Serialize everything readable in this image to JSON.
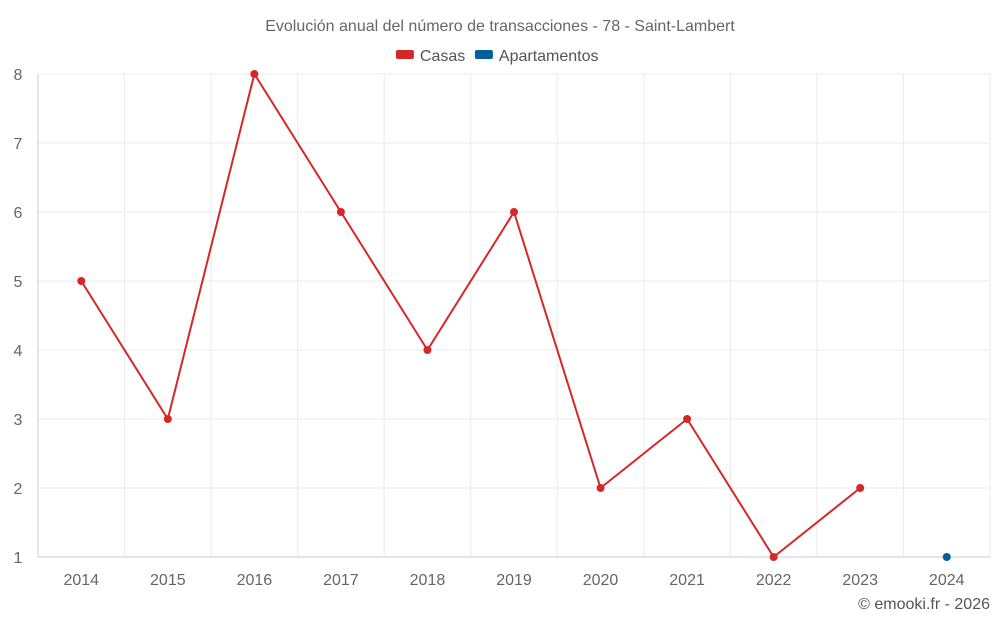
{
  "chart_data": {
    "type": "line",
    "title": "Evolución anual del número de transacciones - 78 - Saint-Lambert",
    "categories": [
      "2014",
      "2015",
      "2016",
      "2017",
      "2018",
      "2019",
      "2020",
      "2021",
      "2022",
      "2023",
      "2024"
    ],
    "series": [
      {
        "name": "Casas",
        "color": "#d62728",
        "values": [
          5,
          3,
          8,
          6,
          4,
          6,
          2,
          3,
          1,
          2,
          null
        ]
      },
      {
        "name": "Apartamentos",
        "color": "#005f99",
        "values": [
          null,
          null,
          null,
          null,
          null,
          null,
          null,
          null,
          null,
          null,
          1
        ]
      }
    ],
    "ylim": [
      1,
      8
    ],
    "yticks": [
      1,
      2,
      3,
      4,
      5,
      6,
      7,
      8
    ],
    "xlabel": "",
    "ylabel": "",
    "grid": true,
    "legend_position": "top-center"
  },
  "credit": "© emooki.fr - 2026"
}
